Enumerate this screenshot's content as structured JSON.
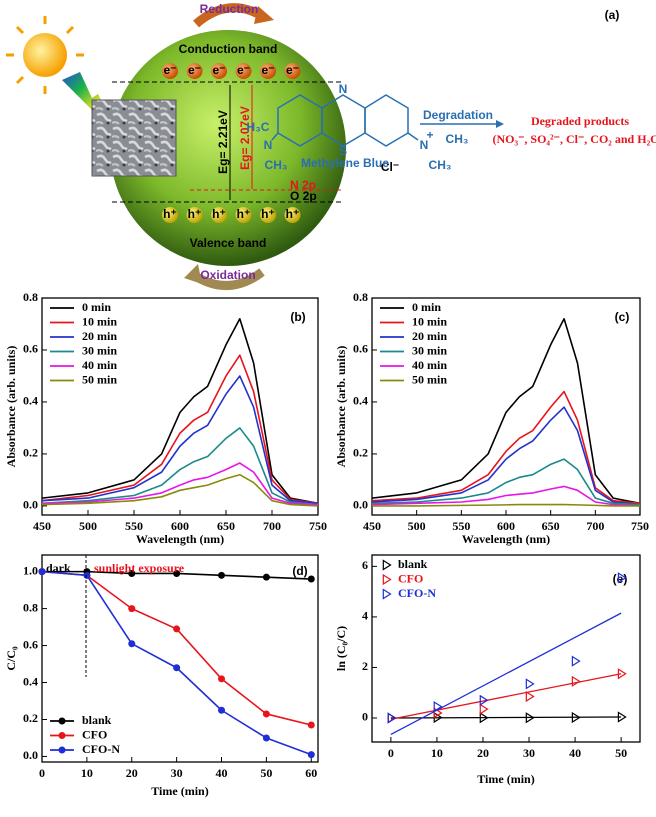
{
  "diagram": {
    "label": "(a)",
    "reduction": "Reduction",
    "oxidation": "Oxidation",
    "conduction_band": "Conduction band",
    "valence_band": "Valence band",
    "electron": "e⁻",
    "hole": "h⁺",
    "eg1": "Eg= 2.21eV",
    "eg2": "Eg= 2.07eV",
    "n2p": "N 2p",
    "o2p": "O 2p",
    "molecule": {
      "name": "Methylene Blue",
      "atoms": [
        "N",
        "S",
        "N",
        "CH₃",
        "H₃C",
        "N",
        "+",
        "CH₃",
        "CH₃",
        "Cl⁻"
      ]
    },
    "degradation": "Degradation",
    "products_title": "Degraded products",
    "products": "(NO₃⁻, SO₄²⁻, Cl⁻,  CO₂ and H₂O)"
  },
  "chart_data": [
    {
      "type": "line",
      "label": "(b)",
      "xlabel": "Wavelength (nm)",
      "ylabel": "Absorbance (arb. units)",
      "legend": "upper left",
      "x": [
        450,
        500,
        550,
        580,
        600,
        615,
        630,
        650,
        665,
        680,
        700,
        720,
        750
      ],
      "xlim": [
        450,
        750
      ],
      "xticks": [
        450,
        500,
        550,
        600,
        650,
        700,
        750
      ],
      "ylim": [
        -0.035,
        0.8
      ],
      "yticks": [
        {
          "value": 0,
          "label": "0.0"
        },
        0.2,
        0.4,
        0.6,
        0.8
      ],
      "series": [
        {
          "name": "0 min",
          "color": "#000000",
          "values": [
            0.03,
            0.05,
            0.1,
            0.2,
            0.36,
            0.42,
            0.46,
            0.62,
            0.72,
            0.55,
            0.12,
            0.03,
            0.01
          ]
        },
        {
          "name": "10 min",
          "color": "#e8141c",
          "values": [
            0.02,
            0.04,
            0.08,
            0.16,
            0.28,
            0.33,
            0.36,
            0.5,
            0.58,
            0.44,
            0.1,
            0.025,
            0.01
          ]
        },
        {
          "name": "20 min",
          "color": "#2233cc",
          "values": [
            0.02,
            0.03,
            0.07,
            0.13,
            0.23,
            0.28,
            0.31,
            0.43,
            0.5,
            0.38,
            0.08,
            0.02,
            0.01
          ]
        },
        {
          "name": "30 min",
          "color": "#1a8a8a",
          "values": [
            0.01,
            0.02,
            0.04,
            0.08,
            0.14,
            0.17,
            0.19,
            0.26,
            0.3,
            0.23,
            0.05,
            0.015,
            0.005
          ]
        },
        {
          "name": "40 min",
          "color": "#e815e8",
          "values": [
            0.01,
            0.015,
            0.03,
            0.05,
            0.08,
            0.1,
            0.11,
            0.14,
            0.165,
            0.13,
            0.03,
            0.01,
            0.005
          ]
        },
        {
          "name": "50 min",
          "color": "#8a8a0a",
          "values": [
            0.005,
            0.01,
            0.02,
            0.035,
            0.06,
            0.07,
            0.08,
            0.105,
            0.12,
            0.09,
            0.02,
            0.005,
            0.0
          ]
        }
      ]
    },
    {
      "type": "line",
      "label": "(c)",
      "xlabel": "Wavelength (nm)",
      "ylabel": "Absorbance (arb. units)",
      "legend": "upper left",
      "x": [
        450,
        500,
        550,
        580,
        600,
        615,
        630,
        650,
        665,
        680,
        700,
        720,
        750
      ],
      "xlim": [
        450,
        750
      ],
      "xticks": [
        450,
        500,
        550,
        600,
        650,
        700,
        750
      ],
      "ylim": [
        -0.035,
        0.8
      ],
      "yticks": [
        {
          "value": 0,
          "label": "0.0"
        },
        0.2,
        0.4,
        0.6,
        0.8
      ],
      "series": [
        {
          "name": "0 min",
          "color": "#000000",
          "values": [
            0.03,
            0.05,
            0.1,
            0.2,
            0.36,
            0.42,
            0.46,
            0.62,
            0.72,
            0.55,
            0.12,
            0.03,
            0.01
          ]
        },
        {
          "name": "10 min",
          "color": "#e8141c",
          "values": [
            0.02,
            0.03,
            0.06,
            0.12,
            0.21,
            0.26,
            0.29,
            0.38,
            0.44,
            0.33,
            0.07,
            0.02,
            0.01
          ]
        },
        {
          "name": "20 min",
          "color": "#2233cc",
          "values": [
            0.015,
            0.025,
            0.05,
            0.1,
            0.18,
            0.22,
            0.25,
            0.33,
            0.38,
            0.29,
            0.06,
            0.015,
            0.005
          ]
        },
        {
          "name": "30 min",
          "color": "#1a8a8a",
          "values": [
            0.01,
            0.015,
            0.03,
            0.05,
            0.09,
            0.11,
            0.12,
            0.16,
            0.18,
            0.14,
            0.03,
            0.01,
            0.005
          ]
        },
        {
          "name": "40 min",
          "color": "#e815e8",
          "values": [
            0.005,
            0.01,
            0.015,
            0.025,
            0.04,
            0.045,
            0.05,
            0.065,
            0.075,
            0.06,
            0.015,
            0.005,
            0
          ]
        },
        {
          "name": "50 min",
          "color": "#8a8a0a",
          "values": [
            0,
            0,
            0.002,
            0.003,
            0.004,
            0.005,
            0.005,
            0.005,
            0.005,
            0.004,
            0.002,
            0,
            0
          ]
        }
      ]
    },
    {
      "type": "line",
      "label": "(d)",
      "xlabel": "Time (min)",
      "ylabel": "C/C₀",
      "legend": "lower left",
      "marker": "circle",
      "annotations": [
        {
          "text": "dark",
          "color": "#000000"
        },
        {
          "text": "sunlight exposure",
          "color": "#e8141c"
        }
      ],
      "x": [
        0,
        10,
        20,
        30,
        40,
        50,
        60
      ],
      "xlim": [
        0,
        61.5
      ],
      "xticks": [
        0,
        10,
        20,
        30,
        40,
        50,
        60
      ],
      "ylim": [
        -0.03,
        1.09
      ],
      "yticks": [
        {
          "value": 0,
          "label": "0.0"
        },
        0.2,
        0.4,
        0.6,
        0.8,
        {
          "value": 1,
          "label": "1.0"
        }
      ],
      "series": [
        {
          "name": "blank",
          "color": "#000000",
          "values": [
            1,
            1,
            0.99,
            0.99,
            0.98,
            0.97,
            0.96
          ]
        },
        {
          "name": "CFO",
          "color": "#e8141c",
          "values": [
            1,
            0.98,
            0.8,
            0.69,
            0.42,
            0.23,
            0.17
          ]
        },
        {
          "name": "CFO-N",
          "color": "#1f2fd6",
          "values": [
            1,
            0.98,
            0.61,
            0.48,
            0.25,
            0.1,
            0.01
          ]
        }
      ]
    },
    {
      "type": "scatter",
      "label": "(e)",
      "xlabel": "Time (min)",
      "ylabel": "ln (C₀/C)",
      "legend": "upper left",
      "marker": "triangle",
      "x": [
        0,
        10,
        20,
        30,
        40,
        50
      ],
      "fit_x": [
        0,
        50
      ],
      "xlim": [
        -4.1,
        54.1
      ],
      "xticks": [
        0,
        10,
        20,
        30,
        40,
        50
      ],
      "ylim": [
        -0.95,
        6.45
      ],
      "yticks": [
        0,
        2,
        4,
        6
      ],
      "series": [
        {
          "name": "blank",
          "color": "#000000",
          "values": [
            0,
            0.02,
            0.01,
            0.01,
            0.02,
            0.04
          ],
          "fit": [
            0,
            0.04
          ]
        },
        {
          "name": "CFO",
          "color": "#e8141c",
          "values": [
            0,
            0.2,
            0.35,
            0.85,
            1.45,
            1.75
          ],
          "fit": [
            -0.05,
            1.75
          ]
        },
        {
          "name": "CFO-N",
          "color": "#1f2fd6",
          "values": [
            0,
            0.45,
            0.7,
            1.35,
            2.25,
            5.55
          ],
          "fit": [
            -0.65,
            4.15
          ]
        }
      ]
    }
  ]
}
